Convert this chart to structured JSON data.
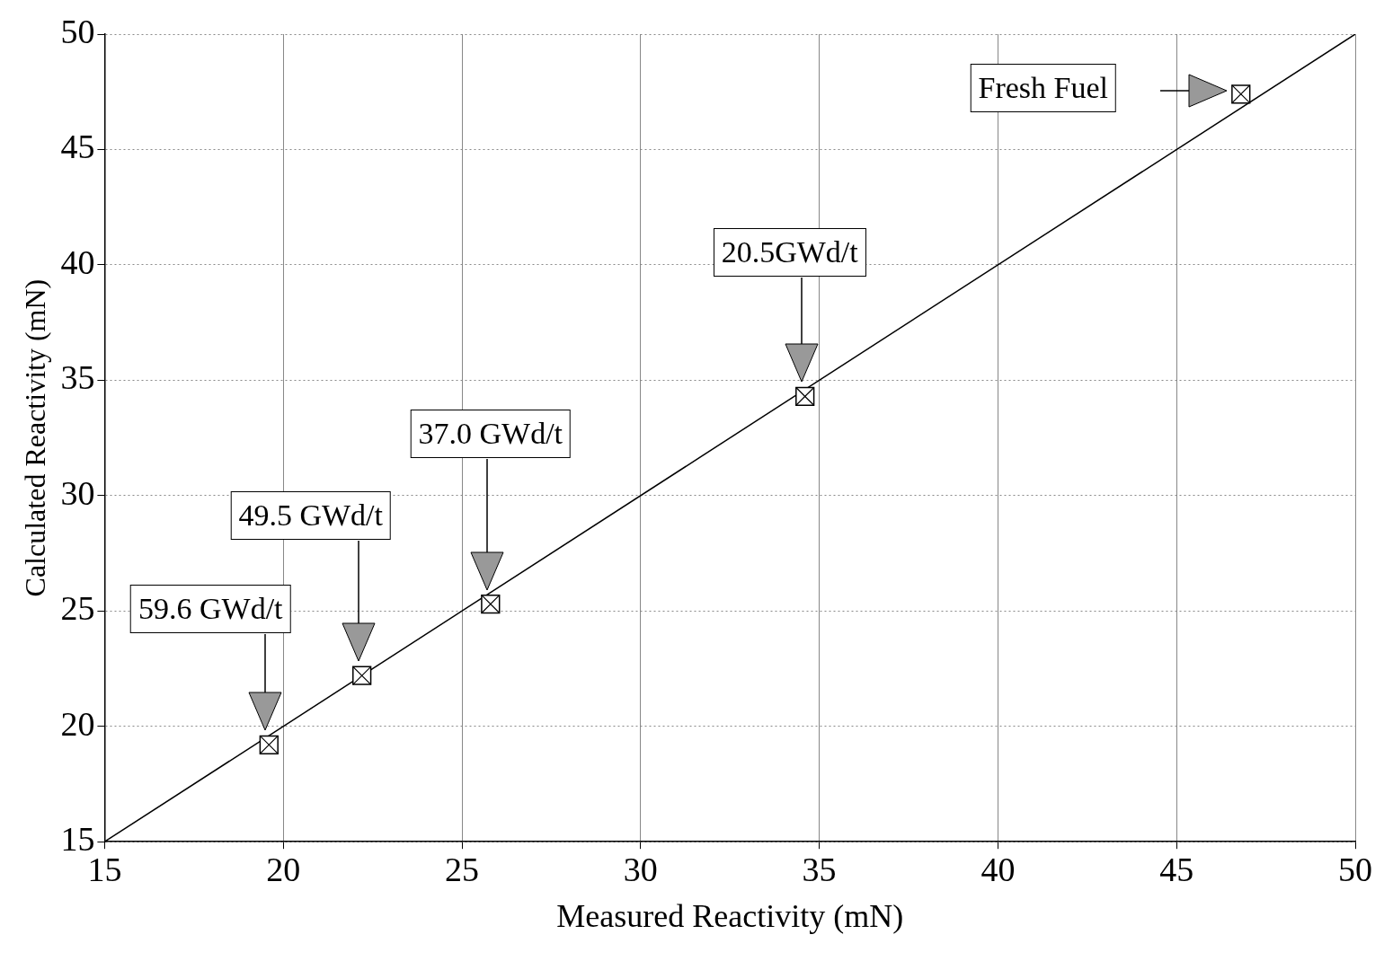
{
  "chart_data": {
    "type": "scatter",
    "xlabel": "Measured Reactivity (mN)",
    "ylabel": "Calculated Reactivity (mN)",
    "x": [
      19.6,
      22.2,
      25.8,
      34.6,
      46.8
    ],
    "values": [
      19.2,
      22.2,
      25.3,
      34.3,
      47.4
    ],
    "marker": "square",
    "color": "#000000",
    "series": [
      {
        "type": "line",
        "x": [
          15,
          50
        ],
        "values": [
          15,
          50
        ],
        "color": "#000000",
        "marker": "none",
        "line_style": "solid"
      }
    ],
    "xlim": [
      15,
      50
    ],
    "ylim": [
      15,
      50
    ],
    "xticks": [
      15,
      20,
      25,
      30,
      35,
      40,
      45,
      50
    ],
    "yticks": [
      15,
      20,
      25,
      30,
      35,
      40,
      45,
      50
    ],
    "grid": true,
    "legend": false,
    "annotations": [
      "59.6 GWd/t",
      "49.5 GWd/t",
      "37.0 GWd/t",
      "20.5GWd/t",
      "Fresh Fuel"
    ]
  }
}
